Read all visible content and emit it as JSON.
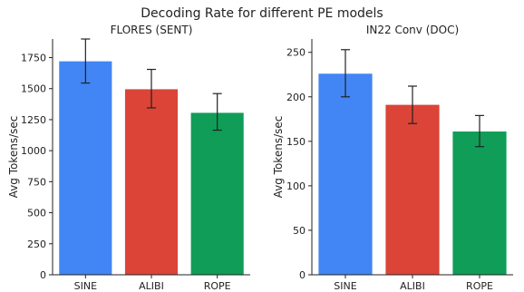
{
  "figure": {
    "title": "Decoding Rate for different PE models"
  },
  "chart_data": [
    {
      "type": "bar",
      "title": "FLORES (SENT)",
      "xlabel": "",
      "ylabel": "Avg Tokens/sec",
      "categories": [
        "SINE",
        "ALIBI",
        "ROPE"
      ],
      "values": [
        1720,
        1495,
        1305
      ],
      "error": [
        [
          1545,
          1900
        ],
        [
          1345,
          1655
        ],
        [
          1165,
          1460
        ]
      ],
      "ylim": [
        0,
        1900
      ],
      "yticks": [
        0,
        250,
        500,
        750,
        1000,
        1250,
        1500,
        1750
      ],
      "colors": [
        "#4285f4",
        "#db4437",
        "#0f9d58"
      ],
      "grid": false
    },
    {
      "type": "bar",
      "title": "IN22 Conv (DOC)",
      "xlabel": "",
      "ylabel": "Avg Tokens/sec",
      "categories": [
        "SINE",
        "ALIBI",
        "ROPE"
      ],
      "values": [
        226,
        191,
        161
      ],
      "error": [
        [
          200,
          253
        ],
        [
          170,
          212
        ],
        [
          144,
          179
        ]
      ],
      "ylim": [
        0,
        265
      ],
      "yticks": [
        0,
        50,
        100,
        150,
        200,
        250
      ],
      "colors": [
        "#4285f4",
        "#db4437",
        "#0f9d58"
      ],
      "grid": false
    }
  ]
}
